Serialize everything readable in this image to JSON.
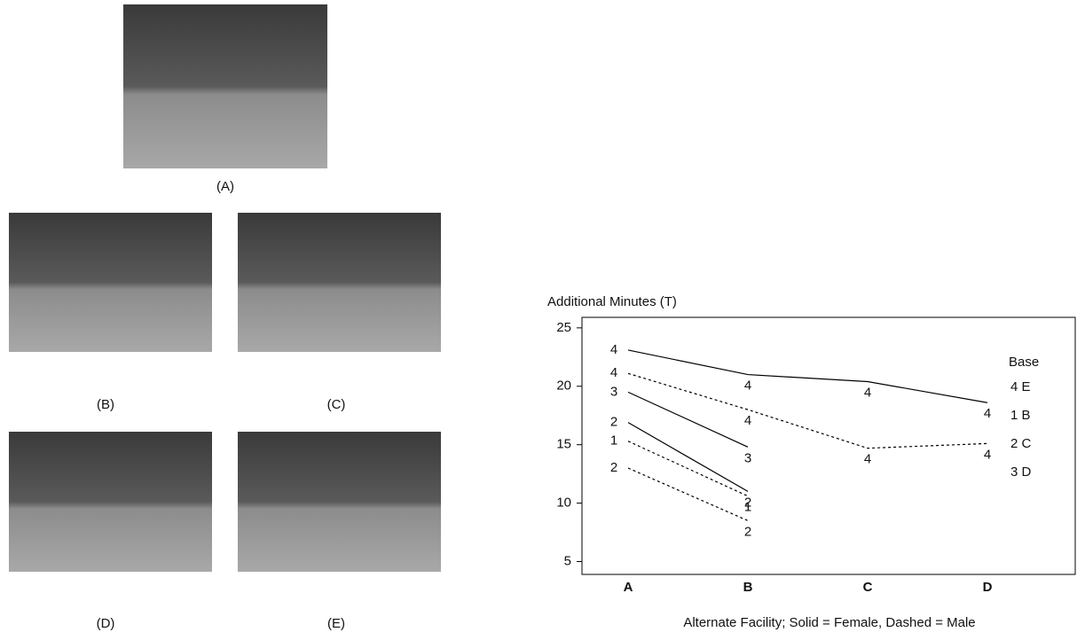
{
  "figure": {
    "photos": [
      "(A)",
      "(B)",
      "(C)",
      "(D)",
      "(E)"
    ]
  },
  "chart_data": {
    "type": "line",
    "y_label": "Additional Minutes (T)",
    "x_label": "Alternate Facility;  Solid = Female, Dashed = Male",
    "categories": [
      "A",
      "B",
      "C",
      "D"
    ],
    "ylim": [
      3.9,
      25.9
    ],
    "yticks": [
      5,
      10,
      15,
      20,
      25
    ],
    "color": "#000000",
    "series": [
      {
        "marker": "4",
        "dashed": false,
        "values": [
          23.1,
          21.0,
          20.4,
          18.6
        ]
      },
      {
        "marker": "4",
        "dashed": true,
        "values": [
          21.1,
          18.0,
          14.7,
          15.1
        ]
      },
      {
        "marker": "3",
        "dashed": false,
        "values": [
          19.5,
          14.8,
          null,
          null
        ]
      },
      {
        "marker": "2",
        "dashed": false,
        "values": [
          16.9,
          11.0,
          null,
          null
        ]
      },
      {
        "marker": "1",
        "dashed": true,
        "values": [
          15.3,
          10.6,
          null,
          null
        ]
      },
      {
        "marker": "2",
        "dashed": true,
        "values": [
          13.0,
          8.5,
          null,
          null
        ]
      }
    ],
    "legend": {
      "title": "Base",
      "entries": [
        "4 E",
        "1 B",
        "2 C",
        "3 D"
      ]
    }
  }
}
